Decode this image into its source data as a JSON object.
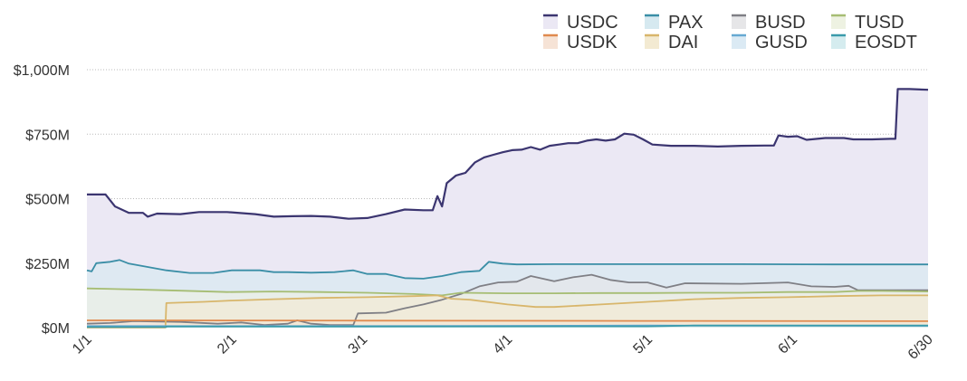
{
  "chart_data": {
    "type": "area",
    "title": "",
    "xlabel": "",
    "ylabel": "",
    "ylim": [
      0,
      1000
    ],
    "x_unit": "day of year (0 = 1/1)",
    "xlim": [
      0,
      180
    ],
    "y_ticks": [
      {
        "value": 0,
        "label": "$0M"
      },
      {
        "value": 250,
        "label": "$250M"
      },
      {
        "value": 500,
        "label": "$500M"
      },
      {
        "value": 750,
        "label": "$750M"
      },
      {
        "value": 1000,
        "label": "$1,000M"
      }
    ],
    "x_ticks": [
      {
        "value": 0,
        "label": "1/1"
      },
      {
        "value": 31,
        "label": "2/1"
      },
      {
        "value": 59,
        "label": "3/1"
      },
      {
        "value": 90,
        "label": "4/1"
      },
      {
        "value": 120,
        "label": "5/1"
      },
      {
        "value": 151,
        "label": "6/1"
      },
      {
        "value": 180,
        "label": "6/30"
      }
    ],
    "grid": "horizontal dotted",
    "legend_position": "top-right",
    "series": [
      {
        "name": "USDC",
        "color": "#3b3570",
        "fill": "#ebe8f4",
        "points": [
          [
            0,
            516
          ],
          [
            4,
            516
          ],
          [
            6,
            470
          ],
          [
            9,
            445
          ],
          [
            12,
            445
          ],
          [
            13,
            430
          ],
          [
            15,
            442
          ],
          [
            20,
            440
          ],
          [
            24,
            448
          ],
          [
            30,
            448
          ],
          [
            36,
            440
          ],
          [
            40,
            430
          ],
          [
            44,
            432
          ],
          [
            48,
            433
          ],
          [
            52,
            430
          ],
          [
            56,
            422
          ],
          [
            60,
            425
          ],
          [
            64,
            440
          ],
          [
            68,
            458
          ],
          [
            72,
            455
          ],
          [
            74,
            455
          ],
          [
            75,
            510
          ],
          [
            76,
            470
          ],
          [
            77,
            560
          ],
          [
            79,
            590
          ],
          [
            81,
            600
          ],
          [
            83,
            640
          ],
          [
            85,
            660
          ],
          [
            87,
            670
          ],
          [
            89,
            680
          ],
          [
            91,
            688
          ],
          [
            93,
            690
          ],
          [
            95,
            700
          ],
          [
            97,
            690
          ],
          [
            99,
            705
          ],
          [
            101,
            710
          ],
          [
            103,
            715
          ],
          [
            105,
            715
          ],
          [
            107,
            725
          ],
          [
            109,
            730
          ],
          [
            111,
            725
          ],
          [
            113,
            730
          ],
          [
            115,
            752
          ],
          [
            117,
            748
          ],
          [
            119,
            730
          ],
          [
            121,
            710
          ],
          [
            125,
            705
          ],
          [
            130,
            705
          ],
          [
            135,
            702
          ],
          [
            140,
            705
          ],
          [
            145,
            706
          ],
          [
            147,
            706
          ],
          [
            148,
            745
          ],
          [
            150,
            740
          ],
          [
            152,
            742
          ],
          [
            154,
            728
          ],
          [
            158,
            735
          ],
          [
            162,
            735
          ],
          [
            164,
            730
          ],
          [
            168,
            730
          ],
          [
            172,
            732
          ],
          [
            173,
            732
          ],
          [
            173.5,
            925
          ],
          [
            176,
            925
          ],
          [
            180,
            922
          ]
        ]
      },
      {
        "name": "PAX",
        "color": "#3a8ea6",
        "fill": "#d6e9f0",
        "points": [
          [
            0,
            222
          ],
          [
            1,
            218
          ],
          [
            2,
            250
          ],
          [
            5,
            255
          ],
          [
            7,
            262
          ],
          [
            9,
            248
          ],
          [
            13,
            235
          ],
          [
            17,
            222
          ],
          [
            22,
            212
          ],
          [
            27,
            212
          ],
          [
            31,
            222
          ],
          [
            37,
            222
          ],
          [
            40,
            215
          ],
          [
            43,
            215
          ],
          [
            48,
            213
          ],
          [
            53,
            215
          ],
          [
            57,
            222
          ],
          [
            60,
            208
          ],
          [
            64,
            208
          ],
          [
            68,
            192
          ],
          [
            72,
            190
          ],
          [
            76,
            200
          ],
          [
            80,
            215
          ],
          [
            84,
            220
          ],
          [
            86,
            255
          ],
          [
            89,
            248
          ],
          [
            92,
            245
          ],
          [
            100,
            246
          ],
          [
            120,
            246
          ],
          [
            140,
            246
          ],
          [
            160,
            245
          ],
          [
            180,
            245
          ]
        ]
      },
      {
        "name": "BUSD",
        "color": "#7f7f85",
        "fill": "#e6e6e8",
        "points": [
          [
            0,
            15
          ],
          [
            5,
            18
          ],
          [
            10,
            25
          ],
          [
            20,
            22
          ],
          [
            28,
            15
          ],
          [
            33,
            20
          ],
          [
            38,
            10
          ],
          [
            43,
            15
          ],
          [
            45,
            28
          ],
          [
            48,
            15
          ],
          [
            52,
            10
          ],
          [
            57,
            10
          ],
          [
            58,
            55
          ],
          [
            64,
            58
          ],
          [
            68,
            75
          ],
          [
            72,
            90
          ],
          [
            76,
            108
          ],
          [
            80,
            130
          ],
          [
            84,
            160
          ],
          [
            88,
            175
          ],
          [
            92,
            178
          ],
          [
            95,
            200
          ],
          [
            100,
            180
          ],
          [
            104,
            195
          ],
          [
            108,
            205
          ],
          [
            112,
            185
          ],
          [
            116,
            175
          ],
          [
            120,
            175
          ],
          [
            124,
            155
          ],
          [
            128,
            172
          ],
          [
            140,
            170
          ],
          [
            150,
            175
          ],
          [
            155,
            160
          ],
          [
            160,
            158
          ],
          [
            163,
            162
          ],
          [
            165,
            145
          ],
          [
            172,
            145
          ],
          [
            180,
            145
          ]
        ]
      },
      {
        "name": "TUSD",
        "color": "#a6bd73",
        "fill": "#eef2e2",
        "points": [
          [
            0,
            152
          ],
          [
            10,
            148
          ],
          [
            20,
            143
          ],
          [
            30,
            138
          ],
          [
            40,
            140
          ],
          [
            50,
            138
          ],
          [
            60,
            135
          ],
          [
            70,
            130
          ],
          [
            76,
            125
          ],
          [
            80,
            135
          ],
          [
            90,
            133
          ],
          [
            100,
            133
          ],
          [
            110,
            134
          ],
          [
            120,
            134
          ],
          [
            130,
            135
          ],
          [
            140,
            135
          ],
          [
            150,
            138
          ],
          [
            160,
            138
          ],
          [
            165,
            142
          ],
          [
            170,
            142
          ],
          [
            180,
            140
          ]
        ]
      },
      {
        "name": "USDK",
        "color": "#e08a4e",
        "fill": "#f6e3d6",
        "points": [
          [
            0,
            28
          ],
          [
            60,
            27
          ],
          [
            120,
            26
          ],
          [
            180,
            25
          ]
        ]
      },
      {
        "name": "DAI",
        "color": "#d8b66b",
        "fill": "#f3ead2",
        "points": [
          [
            0,
            0
          ],
          [
            16.8,
            0
          ],
          [
            17,
            95
          ],
          [
            25,
            100
          ],
          [
            31,
            105
          ],
          [
            40,
            110
          ],
          [
            50,
            115
          ],
          [
            60,
            118
          ],
          [
            70,
            122
          ],
          [
            75,
            125
          ],
          [
            78,
            112
          ],
          [
            82,
            108
          ],
          [
            90,
            90
          ],
          [
            96,
            80
          ],
          [
            100,
            80
          ],
          [
            110,
            90
          ],
          [
            120,
            100
          ],
          [
            130,
            110
          ],
          [
            140,
            115
          ],
          [
            150,
            118
          ],
          [
            160,
            122
          ],
          [
            170,
            125
          ],
          [
            180,
            125
          ]
        ]
      },
      {
        "name": "GUSD",
        "color": "#66a9d2",
        "fill": "#dbeaf4",
        "points": [
          [
            0,
            6
          ],
          [
            60,
            6
          ],
          [
            120,
            8
          ],
          [
            180,
            7
          ]
        ]
      },
      {
        "name": "EOSDT",
        "color": "#3a9bab",
        "fill": "#d5ecef",
        "points": [
          [
            0,
            2
          ],
          [
            17,
            2
          ],
          [
            17,
            4
          ],
          [
            120,
            5
          ],
          [
            130,
            8
          ],
          [
            180,
            8
          ]
        ]
      }
    ]
  }
}
